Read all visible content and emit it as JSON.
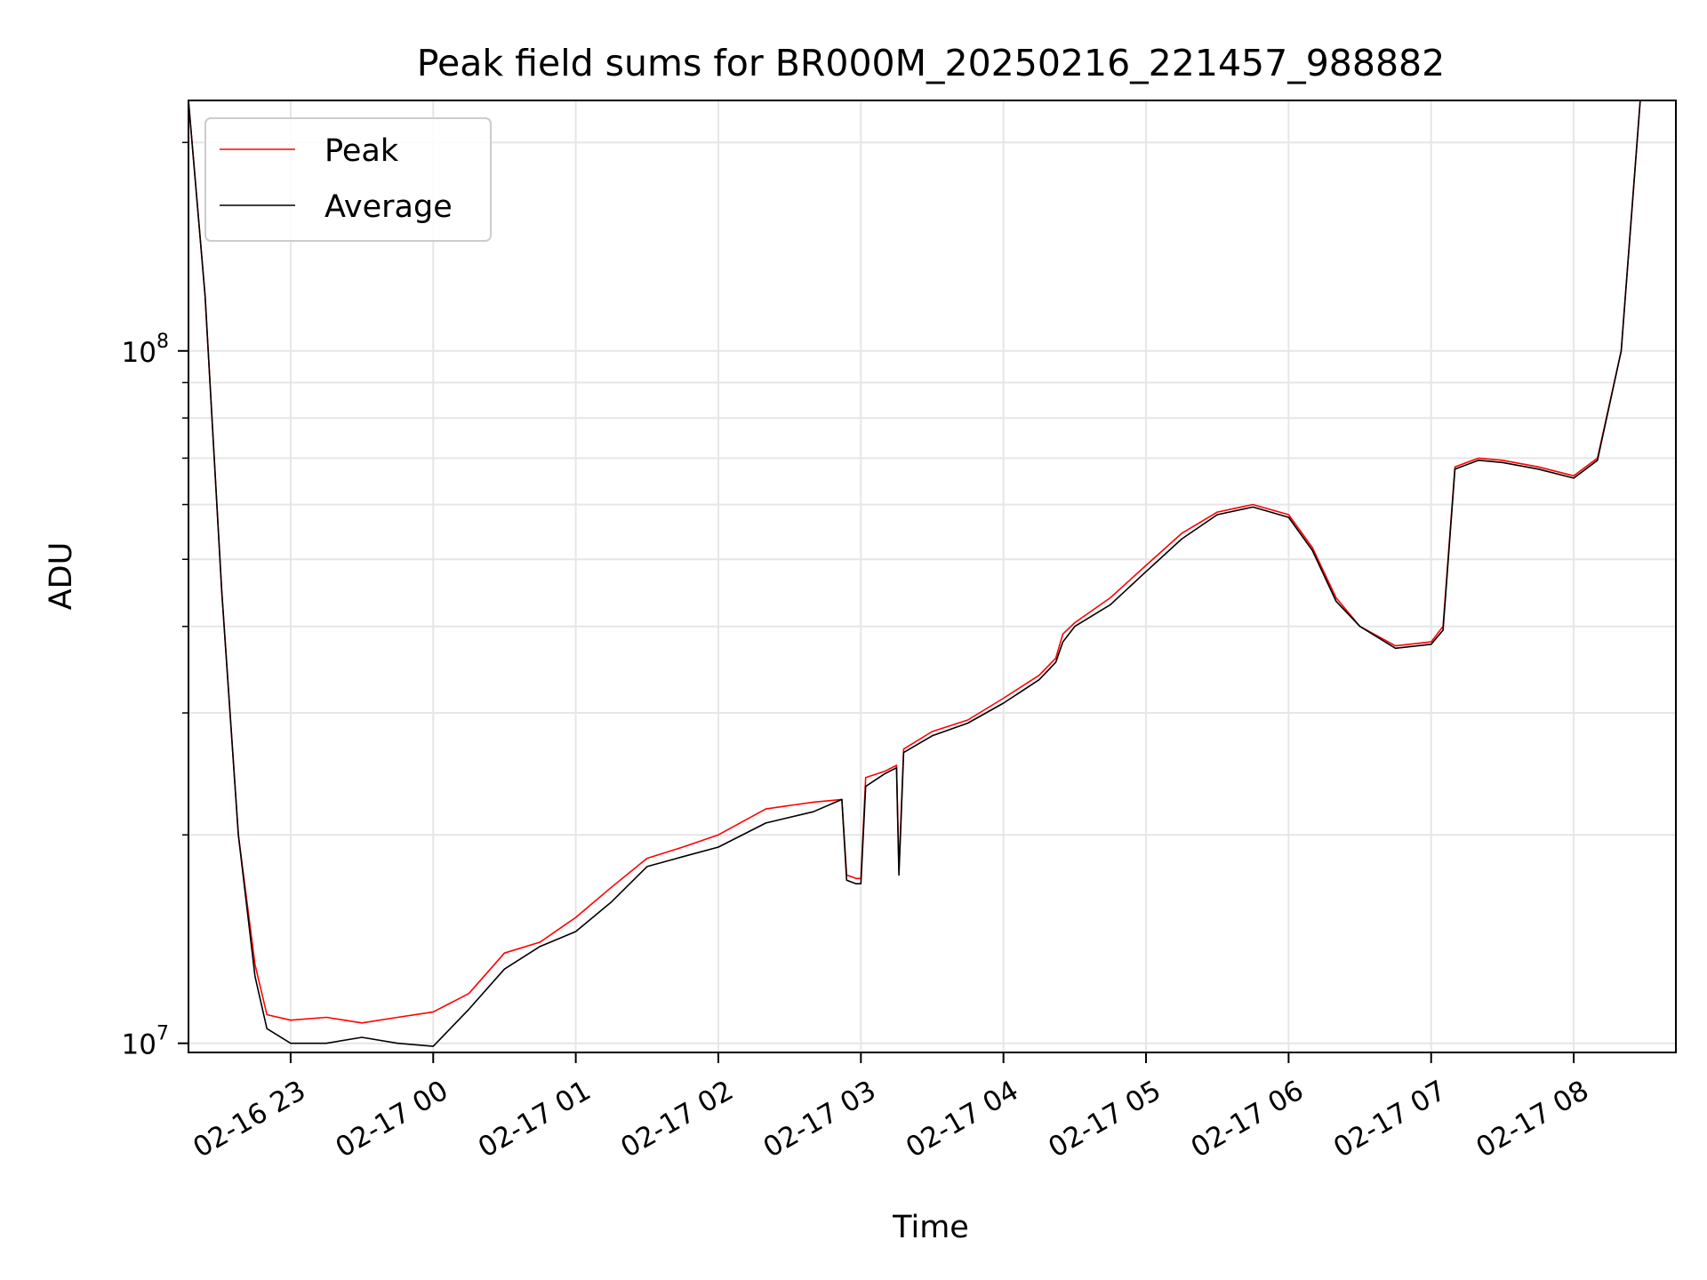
{
  "chart_data": {
    "type": "line",
    "title": "Peak field sums for BR000M_20250216_221457_988882",
    "xlabel": "Time",
    "ylabel": "ADU",
    "yscale": "log",
    "ylim": [
      9700000,
      230000000
    ],
    "xlim": [
      "2025-02-16 22:17",
      "2025-02-17 08:43"
    ],
    "grid": true,
    "legend_position": "top-left",
    "x_tick_labels": [
      "02-16 23",
      "02-17 00",
      "02-17 01",
      "02-17 02",
      "02-17 03",
      "02-17 04",
      "02-17 05",
      "02-17 06",
      "02-17 07",
      "02-17 08"
    ],
    "x_tick_values": [
      "2025-02-16 23:00",
      "2025-02-17 00:00",
      "2025-02-17 01:00",
      "2025-02-17 02:00",
      "2025-02-17 03:00",
      "2025-02-17 04:00",
      "2025-02-17 05:00",
      "2025-02-17 06:00",
      "2025-02-17 07:00",
      "2025-02-17 08:00"
    ],
    "y_major_ticks": [
      10000000,
      100000000
    ],
    "y_tick_labels": [
      {
        "base": "10",
        "exp": "7"
      },
      {
        "base": "10",
        "exp": "8"
      }
    ],
    "y_minor_ticks": [
      20000000,
      30000000,
      40000000,
      50000000,
      60000000,
      70000000,
      80000000,
      90000000,
      200000000
    ],
    "series": [
      {
        "name": "Peak",
        "color": "#ff0000",
        "x": [
          "2025-02-16 22:17",
          "2025-02-16 22:24",
          "2025-02-16 22:31",
          "2025-02-16 22:38",
          "2025-02-16 22:45",
          "2025-02-16 22:50",
          "2025-02-16 23:00",
          "2025-02-16 23:15",
          "2025-02-16 23:30",
          "2025-02-16 23:45",
          "2025-02-17 00:00",
          "2025-02-17 00:15",
          "2025-02-17 00:30",
          "2025-02-17 00:45",
          "2025-02-17 01:00",
          "2025-02-17 01:15",
          "2025-02-17 01:30",
          "2025-02-17 01:45",
          "2025-02-17 02:00",
          "2025-02-17 02:20",
          "2025-02-17 02:40",
          "2025-02-17 02:52",
          "2025-02-17 02:54",
          "2025-02-17 02:58",
          "2025-02-17 03:00",
          "2025-02-17 03:02",
          "2025-02-17 03:10",
          "2025-02-17 03:15",
          "2025-02-17 03:16",
          "2025-02-17 03:18",
          "2025-02-17 03:30",
          "2025-02-17 03:45",
          "2025-02-17 04:00",
          "2025-02-17 04:15",
          "2025-02-17 04:22",
          "2025-02-17 04:25",
          "2025-02-17 04:30",
          "2025-02-17 04:45",
          "2025-02-17 05:00",
          "2025-02-17 05:15",
          "2025-02-17 05:30",
          "2025-02-17 05:45",
          "2025-02-17 06:00",
          "2025-02-17 06:10",
          "2025-02-17 06:20",
          "2025-02-17 06:30",
          "2025-02-17 06:45",
          "2025-02-17 07:00",
          "2025-02-17 07:05",
          "2025-02-17 07:10",
          "2025-02-17 07:20",
          "2025-02-17 07:30",
          "2025-02-17 07:45",
          "2025-02-17 08:00",
          "2025-02-17 08:10",
          "2025-02-17 08:20",
          "2025-02-17 08:28"
        ],
        "y": [
          230000000,
          120000000,
          45000000,
          20000000,
          13000000,
          11000000,
          10800000,
          10900000,
          10700000,
          10900000,
          11100000,
          11800000,
          13500000,
          14000000,
          15200000,
          16800000,
          18500000,
          19200000,
          20000000,
          21800000,
          22300000,
          22500000,
          17500000,
          17300000,
          17300000,
          24200000,
          24700000,
          25200000,
          17800000,
          26600000,
          28200000,
          29300000,
          31500000,
          34000000,
          36000000,
          39000000,
          40500000,
          44000000,
          49000000,
          54500000,
          58500000,
          60000000,
          58000000,
          52000000,
          44000000,
          40000000,
          37500000,
          38000000,
          40000000,
          68000000,
          70000000,
          69500000,
          68000000,
          66000000,
          70000000,
          100000000,
          230000000
        ]
      },
      {
        "name": "Average",
        "color": "#000000",
        "x": [
          "2025-02-16 22:17",
          "2025-02-16 22:24",
          "2025-02-16 22:31",
          "2025-02-16 22:38",
          "2025-02-16 22:45",
          "2025-02-16 22:50",
          "2025-02-16 23:00",
          "2025-02-16 23:15",
          "2025-02-16 23:30",
          "2025-02-16 23:45",
          "2025-02-17 00:00",
          "2025-02-17 00:15",
          "2025-02-17 00:30",
          "2025-02-17 00:45",
          "2025-02-17 01:00",
          "2025-02-17 01:15",
          "2025-02-17 01:30",
          "2025-02-17 01:45",
          "2025-02-17 02:00",
          "2025-02-17 02:20",
          "2025-02-17 02:40",
          "2025-02-17 02:52",
          "2025-02-17 02:54",
          "2025-02-17 02:58",
          "2025-02-17 03:00",
          "2025-02-17 03:02",
          "2025-02-17 03:10",
          "2025-02-17 03:15",
          "2025-02-17 03:16",
          "2025-02-17 03:18",
          "2025-02-17 03:30",
          "2025-02-17 03:45",
          "2025-02-17 04:00",
          "2025-02-17 04:15",
          "2025-02-17 04:22",
          "2025-02-17 04:25",
          "2025-02-17 04:30",
          "2025-02-17 04:45",
          "2025-02-17 05:00",
          "2025-02-17 05:15",
          "2025-02-17 05:30",
          "2025-02-17 05:45",
          "2025-02-17 06:00",
          "2025-02-17 06:10",
          "2025-02-17 06:20",
          "2025-02-17 06:30",
          "2025-02-17 06:45",
          "2025-02-17 07:00",
          "2025-02-17 07:05",
          "2025-02-17 07:10",
          "2025-02-17 07:20",
          "2025-02-17 07:30",
          "2025-02-17 07:45",
          "2025-02-17 08:00",
          "2025-02-17 08:10",
          "2025-02-17 08:20",
          "2025-02-17 08:28"
        ],
        "y": [
          230000000,
          120000000,
          45000000,
          20000000,
          12500000,
          10500000,
          10000000,
          10000000,
          10200000,
          10000000,
          9900000,
          11200000,
          12800000,
          13800000,
          14500000,
          16000000,
          18000000,
          18600000,
          19200000,
          20800000,
          21600000,
          22500000,
          17200000,
          17000000,
          17000000,
          23500000,
          24500000,
          25000000,
          17500000,
          26300000,
          27800000,
          29000000,
          31000000,
          33500000,
          35500000,
          38000000,
          40000000,
          43000000,
          48000000,
          53500000,
          58000000,
          59500000,
          57500000,
          51500000,
          43500000,
          40000000,
          37200000,
          37700000,
          39500000,
          67500000,
          69500000,
          69000000,
          67500000,
          65500000,
          69500000,
          100000000,
          230000000
        ]
      }
    ]
  }
}
